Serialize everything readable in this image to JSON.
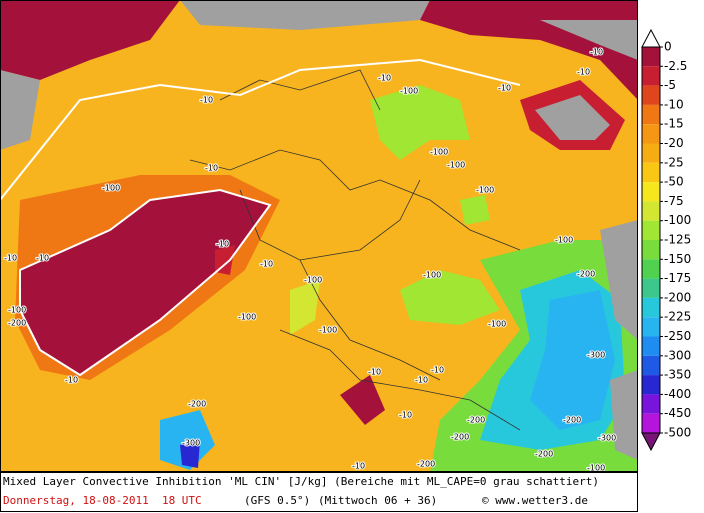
{
  "map": {
    "contour_labels": [
      "-10",
      "-10",
      "-10",
      "-10",
      "-100",
      "-10",
      "-10",
      "-100",
      "-100",
      "-100",
      "-100",
      "-10",
      "-10",
      "-10",
      "-10",
      "-100",
      "-200",
      "-100",
      "-100",
      "-100",
      "-200",
      "-100",
      "-100",
      "-100",
      "-300",
      "-10",
      "-10",
      "-10",
      "-10",
      "-200",
      "-10",
      "-200",
      "-200",
      "-300",
      "-200",
      "-300",
      "-200",
      "-10",
      "-200",
      "-100"
    ]
  },
  "legend": {
    "ticks": [
      0,
      -2.5,
      -5,
      -10,
      -15,
      -20,
      -25,
      -50,
      -75,
      -100,
      -125,
      -150,
      -175,
      -200,
      -225,
      -250,
      -300,
      -350,
      -400,
      -450,
      -500
    ],
    "colors": [
      "#a4123c",
      "#c81e32",
      "#e0461e",
      "#f07814",
      "#f59614",
      "#f8ac14",
      "#fac814",
      "#f5e61e",
      "#d2e632",
      "#a0e632",
      "#78dc3c",
      "#50d250",
      "#3cc88c",
      "#28c8dc",
      "#28b4f0",
      "#1e8cf0",
      "#1e5ae6",
      "#2828d2",
      "#7814dc",
      "#b414dc"
    ],
    "over_color": "#ffffff",
    "under_color": "#781478"
  },
  "caption": {
    "title": "Mixed Layer Convective Inhibition 'ML CIN' [J/kg] (Bereiche mit ML_CAPE=0 grau schattiert)",
    "date": "Donnerstag, 18-08-2011  18 UTC",
    "model": "(GFS 0.5°)",
    "run": "(Mittwoch 06 + 36)",
    "credit": "© www.wetter3.de"
  }
}
